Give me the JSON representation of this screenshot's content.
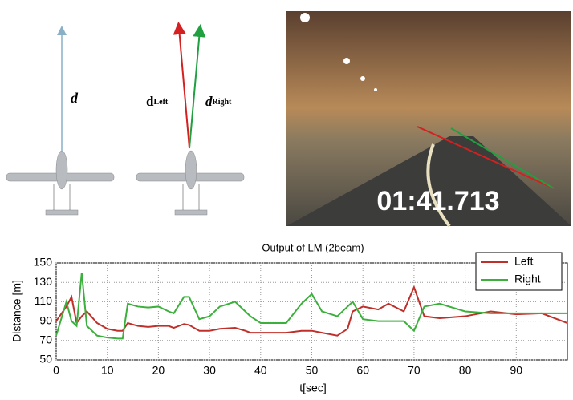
{
  "figure": {
    "diagram": {
      "single": {
        "letter": "d"
      },
      "left": {
        "letter": "d",
        "sub": "Left"
      },
      "right": {
        "letter": "d",
        "sub": "Right"
      }
    },
    "photo": {
      "timestamp": "01:41.713"
    }
  },
  "chart_data": {
    "type": "line",
    "title": "Output of LM (2beam)",
    "x_label": "t[sec]",
    "y_label": "Distance [m]",
    "x": [
      0,
      2,
      3,
      4,
      5,
      6,
      8,
      10,
      12,
      13,
      14,
      16,
      18,
      20,
      22,
      23,
      25,
      26,
      28,
      30,
      32,
      35,
      37,
      38,
      40,
      45,
      48,
      50,
      52,
      55,
      57,
      58,
      60,
      63,
      65,
      68,
      70,
      72,
      75,
      80,
      85,
      90,
      95,
      100
    ],
    "series": [
      {
        "name": "Left",
        "color": "#c0302a",
        "values": [
          90,
          105,
          115,
          88,
          95,
          100,
          88,
          82,
          80,
          80,
          88,
          85,
          84,
          85,
          85,
          83,
          87,
          86,
          80,
          80,
          82,
          83,
          80,
          78,
          78,
          78,
          80,
          80,
          78,
          75,
          82,
          100,
          105,
          102,
          108,
          100,
          125,
          95,
          93,
          95,
          100,
          97,
          98,
          88
        ]
      },
      {
        "name": "Right",
        "color": "#3cb03c",
        "values": [
          75,
          110,
          90,
          85,
          140,
          85,
          75,
          73,
          72,
          72,
          108,
          105,
          104,
          105,
          100,
          98,
          115,
          115,
          92,
          95,
          105,
          110,
          100,
          95,
          88,
          88,
          108,
          118,
          100,
          95,
          105,
          110,
          92,
          90,
          90,
          90,
          80,
          105,
          108,
          100,
          98,
          98,
          98,
          98
        ]
      }
    ],
    "xlim": [
      0,
      100
    ],
    "xticks": [
      0,
      10,
      20,
      30,
      40,
      50,
      60,
      70,
      80,
      90
    ],
    "ylim": [
      50,
      150
    ],
    "yticks": [
      50,
      70,
      90,
      110,
      130,
      150
    ],
    "grid": true,
    "legend": "upper-right"
  }
}
